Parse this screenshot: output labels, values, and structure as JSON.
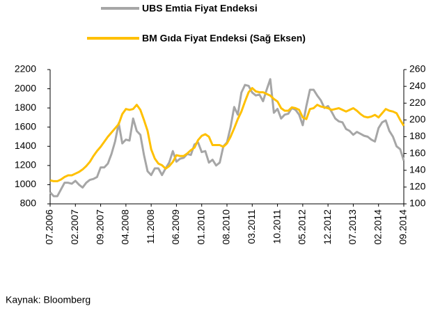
{
  "chart_data": {
    "type": "line",
    "categories": [
      "07.2006",
      null,
      null,
      null,
      null,
      null,
      null,
      "02.2007",
      null,
      null,
      null,
      null,
      null,
      null,
      "09.2007",
      null,
      null,
      null,
      null,
      null,
      null,
      "04.2008",
      null,
      null,
      null,
      null,
      null,
      null,
      "11.2008",
      null,
      null,
      null,
      null,
      null,
      null,
      "06.2009",
      null,
      null,
      null,
      null,
      null,
      null,
      "01.2010",
      null,
      null,
      null,
      null,
      null,
      null,
      "08.2010",
      null,
      null,
      null,
      null,
      null,
      null,
      "03.2011",
      null,
      null,
      null,
      null,
      null,
      null,
      "10.2011",
      null,
      null,
      null,
      null,
      null,
      null,
      "05.2012",
      null,
      null,
      null,
      null,
      null,
      null,
      "12.2012",
      null,
      null,
      null,
      null,
      null,
      null,
      "07.2013",
      null,
      null,
      null,
      null,
      null,
      null,
      "02.2014",
      null,
      null,
      null,
      null,
      null,
      null,
      "09.2014"
    ],
    "series": [
      {
        "name": "UBS Emtia Fiyat Endeksi",
        "color": "#a6a6a6",
        "axis": "y",
        "values": [
          920,
          880,
          880,
          950,
          1020,
          1020,
          1010,
          1040,
          1000,
          970,
          1020,
          1050,
          1060,
          1080,
          1180,
          1180,
          1220,
          1320,
          1450,
          1640,
          1430,
          1470,
          1460,
          1690,
          1560,
          1520,
          1310,
          1140,
          1100,
          1170,
          1170,
          1100,
          1170,
          1230,
          1350,
          1240,
          1270,
          1280,
          1320,
          1310,
          1420,
          1440,
          1340,
          1350,
          1230,
          1260,
          1200,
          1230,
          1400,
          1440,
          1600,
          1810,
          1730,
          1960,
          2040,
          2030,
          1960,
          1930,
          1940,
          1870,
          1990,
          2100,
          1750,
          1790,
          1690,
          1730,
          1740,
          1800,
          1780,
          1730,
          1620,
          1820,
          1990,
          1990,
          1930,
          1880,
          1800,
          1820,
          1760,
          1690,
          1660,
          1650,
          1580,
          1560,
          1520,
          1550,
          1530,
          1510,
          1500,
          1470,
          1450,
          1590,
          1650,
          1670,
          1560,
          1500,
          1400,
          1370,
          1250
        ]
      },
      {
        "name": "BM Gıda Fiyat Endeksi (Sağ Eksen)",
        "color": "#ffc000",
        "axis": "y2",
        "values": [
          128,
          127,
          127,
          129,
          132,
          134,
          134,
          136,
          138,
          141,
          145,
          150,
          157,
          163,
          168,
          174,
          180,
          185,
          190,
          195,
          207,
          213,
          212,
          213,
          218,
          212,
          200,
          187,
          165,
          154,
          148,
          146,
          142,
          145,
          150,
          158,
          157,
          157,
          160,
          164,
          167,
          176,
          181,
          183,
          180,
          170,
          170,
          170,
          168,
          172,
          180,
          190,
          201,
          210,
          222,
          233,
          238,
          234,
          233,
          233,
          231,
          229,
          225,
          222,
          214,
          211,
          211,
          215,
          214,
          212,
          203,
          201,
          213,
          214,
          218,
          216,
          215,
          214,
          212,
          213,
          214,
          212,
          210,
          212,
          214,
          211,
          207,
          204,
          203,
          204,
          206,
          203,
          208,
          213,
          211,
          210,
          208,
          200,
          193
        ]
      }
    ],
    "ylim": [
      800,
      2200
    ],
    "yticks": [
      800,
      1000,
      1200,
      1400,
      1600,
      1800,
      2000,
      2200
    ],
    "y2lim": [
      100,
      260
    ],
    "y2ticks": [
      100,
      120,
      140,
      160,
      180,
      200,
      220,
      240,
      260
    ],
    "grid": false,
    "source": "Kaynak: Bloomberg"
  }
}
